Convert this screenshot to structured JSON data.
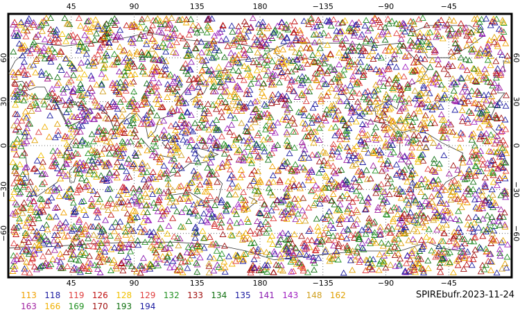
{
  "title": "SPIREbufr.2023-11-24",
  "top_ticks": [
    "45",
    "90",
    "135",
    "180",
    "−135",
    "−90",
    "−45"
  ],
  "bottom_ticks": [
    "45",
    "90",
    "135",
    "180",
    "−135",
    "−90",
    "−45"
  ],
  "left_ticks": [
    "60",
    "30",
    "0",
    "−30",
    "−60"
  ],
  "right_ticks": [
    "60",
    "30",
    "0",
    "−30",
    "−60"
  ],
  "legend": [
    {
      "label": "113",
      "color": "#f0a000"
    },
    {
      "label": "118",
      "color": "#1a1aa0"
    },
    {
      "label": "119",
      "color": "#e04040"
    },
    {
      "label": "126",
      "color": "#c01010"
    },
    {
      "label": "128",
      "color": "#f0c000"
    },
    {
      "label": "129",
      "color": "#e04040"
    },
    {
      "label": "132",
      "color": "#209020"
    },
    {
      "label": "133",
      "color": "#a01010"
    },
    {
      "label": "134",
      "color": "#107010"
    },
    {
      "label": "135",
      "color": "#1a1aa0"
    },
    {
      "label": "141",
      "color": "#8a1ab0"
    },
    {
      "label": "143",
      "color": "#a020c0"
    },
    {
      "label": "148",
      "color": "#d0a020"
    },
    {
      "label": "162",
      "color": "#e0a000"
    },
    {
      "label": "163",
      "color": "#a020a0"
    },
    {
      "label": "166",
      "color": "#f0b000"
    },
    {
      "label": "169",
      "color": "#209020"
    },
    {
      "label": "170",
      "color": "#a01010"
    },
    {
      "label": "193",
      "color": "#107010"
    },
    {
      "label": "194",
      "color": "#1a1aa0"
    }
  ]
}
